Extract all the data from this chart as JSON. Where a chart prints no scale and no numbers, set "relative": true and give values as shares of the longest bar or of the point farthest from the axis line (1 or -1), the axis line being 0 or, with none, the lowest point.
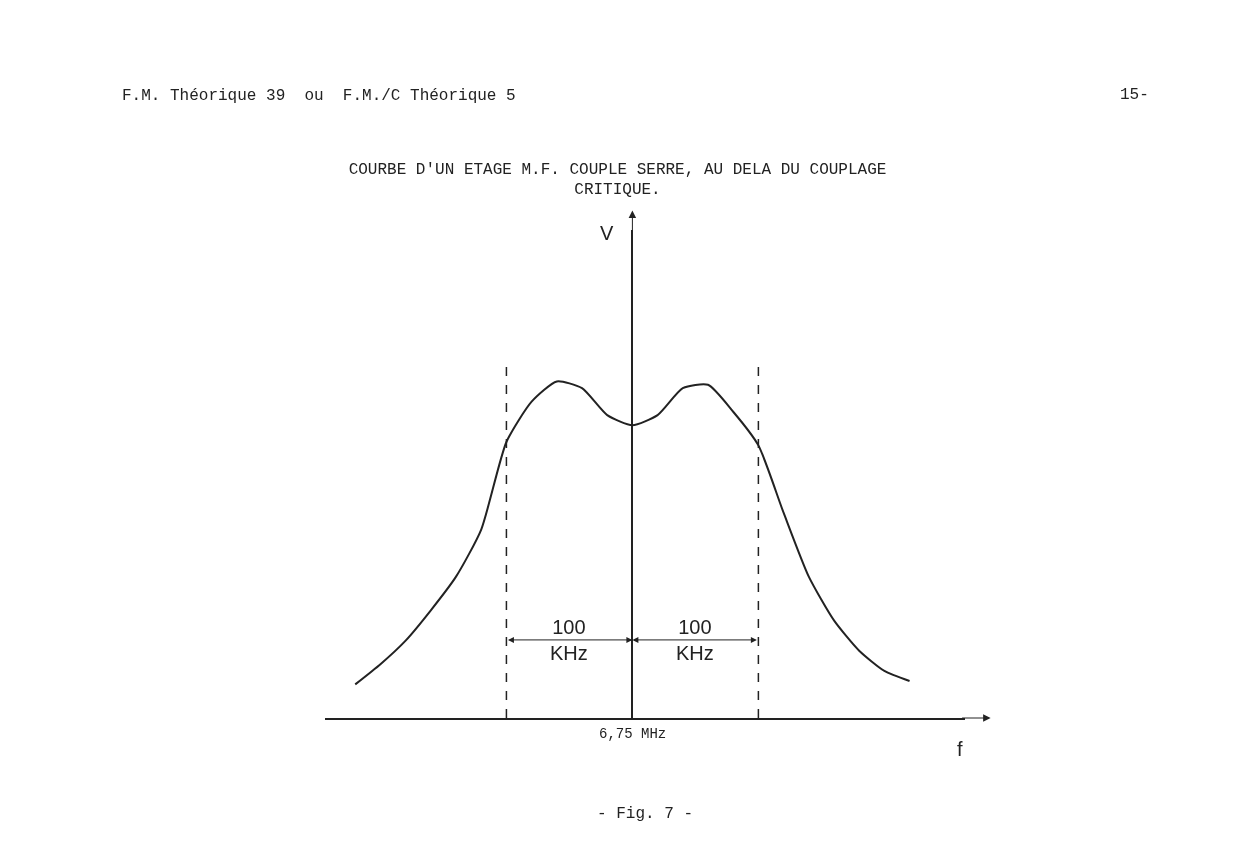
{
  "chart_data": {
    "type": "line",
    "relative": true,
    "title": "COURBE D'UN ETAGE M.F. COUPLE SERRE, AU DELA DU COUPLAGE\nCRITIQUE.",
    "categories": [
      null,
      null,
      null,
      null,
      null,
      null,
      null,
      null,
      null,
      null,
      null,
      null,
      null,
      null,
      null,
      null,
      null,
      null,
      null,
      null,
      null,
      null,
      null
    ],
    "series": [
      {
        "color": "#222222",
        "values": [
          0.1,
          0.16,
          0.23,
          0.32,
          0.42,
          0.56,
          0.82,
          0.94,
          1.0,
          0.98,
          0.9,
          0.87,
          0.9,
          0.98,
          0.99,
          0.91,
          0.81,
          0.61,
          0.42,
          0.29,
          0.2,
          0.14,
          0.11
        ]
      }
    ],
    "annotations": [
      "F.M. Théorique 39  ou  F.M./C Théorique 5",
      "15-",
      "- Fig. 7 -",
      "100\nKHz",
      "100\nKHz",
      "6,75 MHz",
      "V",
      "f"
    ],
    "legend": false,
    "marker": "none",
    "line_style": "solid"
  }
}
